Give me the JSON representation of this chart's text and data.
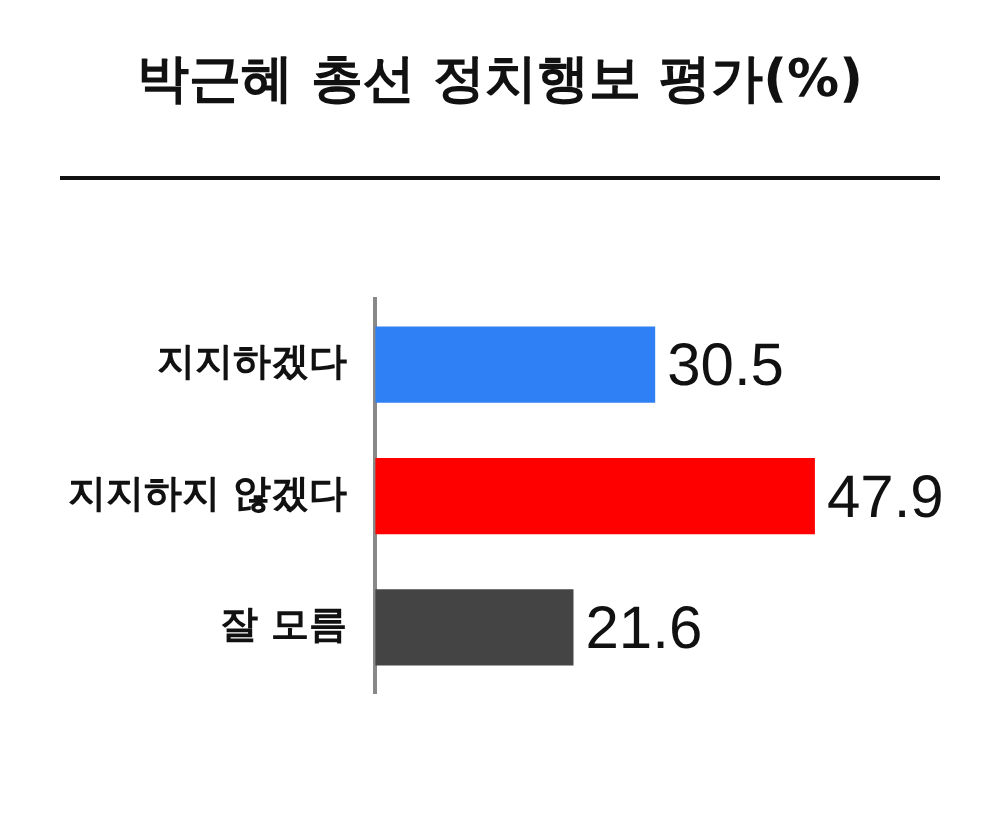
{
  "chart_data": {
    "type": "bar",
    "orientation": "horizontal",
    "title": "박근혜 총선 정치행보 평가(%)",
    "categories": [
      "지지하겠다",
      "지지하지 않겠다",
      "잘 모름"
    ],
    "values": [
      30.5,
      47.9,
      21.6
    ],
    "colors": [
      "#2f7ff5",
      "#ff0000",
      "#444444"
    ],
    "data_labels": true,
    "grid": false,
    "legend": false
  }
}
